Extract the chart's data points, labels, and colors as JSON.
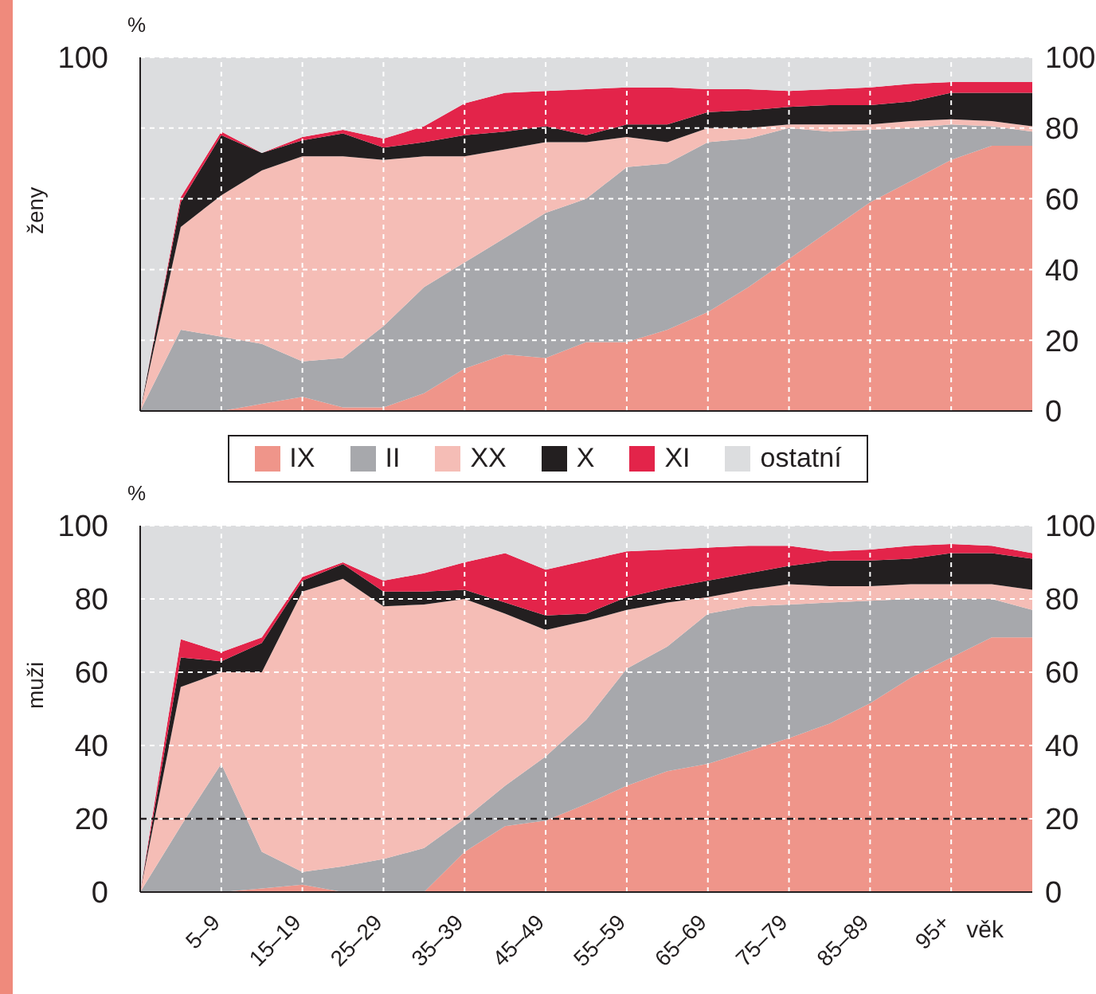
{
  "chart_data": [
    {
      "type": "area",
      "stacked": true,
      "ylabel": "ženy",
      "annotations": [
        "%"
      ],
      "categories": [
        null,
        null,
        null,
        null,
        null,
        null,
        null,
        null,
        null,
        null,
        null,
        null,
        null,
        null,
        null,
        null,
        null,
        null,
        null,
        null,
        null,
        null,
        null
      ],
      "ylim": [
        0,
        100
      ],
      "yticks": [
        {
          "value": 0,
          "label": null
        },
        {
          "value": 20,
          "label": null
        },
        {
          "value": 40,
          "label": null
        },
        {
          "value": 60,
          "label": null
        },
        {
          "value": 80,
          "label": null
        },
        100
      ],
      "y2lim": [
        0,
        100
      ],
      "y2ticks": [
        0,
        20,
        40,
        60,
        80,
        100
      ],
      "grid": true,
      "tick_labels": "y",
      "series": [
        {
          "color": "#ef958a",
          "values": [
            0,
            0,
            0,
            2,
            4,
            1,
            1,
            5,
            12,
            16,
            15,
            19.5,
            19.5,
            23,
            28,
            35,
            43,
            51,
            59,
            65,
            71,
            75,
            75
          ]
        },
        {
          "color": "#a7a8ac",
          "values": [
            0,
            23,
            21,
            17,
            10,
            14,
            23,
            30,
            30,
            33,
            41,
            40.5,
            49.5,
            47,
            48,
            42,
            37,
            28,
            20.5,
            15,
            10,
            5.5,
            4
          ]
        },
        {
          "color": "#f5bdb6",
          "values": [
            0,
            29,
            40,
            49,
            58,
            57,
            47,
            37,
            30,
            25,
            20,
            16,
            8.5,
            6,
            4,
            3,
            1,
            2,
            1.5,
            2,
            1.5,
            1.5,
            1.5
          ]
        },
        {
          "color": "#231f20",
          "values": [
            0,
            7,
            17,
            5,
            4.5,
            6.5,
            3.5,
            4,
            6,
            5,
            4.5,
            2,
            3.5,
            5,
            4.5,
            5,
            5,
            5.5,
            5.5,
            5.5,
            7.5,
            8,
            9.5
          ]
        },
        {
          "color": "#e3244a",
          "values": [
            0,
            1.5,
            1,
            0,
            1,
            1,
            2.5,
            4.5,
            9,
            11,
            10,
            13,
            10.5,
            10.5,
            6.5,
            6,
            4.5,
            4.5,
            5,
            5,
            3,
            3,
            3
          ]
        },
        {
          "color": "#dcdddf",
          "values": [
            100,
            39.5,
            21,
            27,
            22.5,
            20.5,
            23,
            19.5,
            13,
            10,
            9.5,
            9,
            8.5,
            8.5,
            9,
            9,
            9.5,
            9,
            8.5,
            7.5,
            7,
            7,
            7
          ]
        }
      ]
    },
    {
      "type": "area",
      "stacked": true,
      "ylabel": "muži",
      "xlabel": "věk",
      "annotations": [
        "%"
      ],
      "legend": "top",
      "categories": [
        null,
        null,
        "5–9",
        null,
        "15–19",
        null,
        "25–29",
        null,
        "35–39",
        null,
        "45–49",
        null,
        "55–59",
        null,
        "65–69",
        null,
        "75–79",
        null,
        "85–89",
        null,
        "95+",
        null,
        null
      ],
      "ylim": [
        0,
        100
      ],
      "yticks": [
        0,
        20,
        40,
        60,
        80,
        100
      ],
      "y2lim": [
        0,
        100
      ],
      "y2ticks": [
        0,
        20,
        40,
        60,
        80,
        100
      ],
      "grid": true,
      "ref_lines": [
        {
          "axis": "y",
          "value": 20,
          "color": "#231f20",
          "line_style": "dashed"
        }
      ],
      "series": [
        {
          "name": "IX",
          "color": "#ef958a",
          "values": [
            0,
            0,
            0,
            1,
            2,
            0,
            0,
            0,
            11,
            18,
            19.5,
            24,
            29,
            33,
            35,
            38.5,
            42,
            46,
            51.5,
            58.5,
            64,
            69.5,
            69.5
          ]
        },
        {
          "name": "II",
          "color": "#a7a8ac",
          "values": [
            0,
            18,
            35,
            10,
            3.5,
            7,
            9,
            12,
            9,
            11,
            17.5,
            23,
            32,
            34,
            41,
            39.5,
            36.5,
            33,
            28,
            21.5,
            16,
            10.5,
            7.5
          ]
        },
        {
          "name": "XX",
          "color": "#f5bdb6",
          "values": [
            0,
            38,
            25,
            49,
            76.5,
            78.5,
            69,
            66.5,
            60,
            47,
            34.5,
            27,
            16,
            12,
            4.5,
            4.5,
            5.5,
            4.5,
            4,
            4,
            4,
            4,
            5.5
          ]
        },
        {
          "name": "X",
          "color": "#231f20",
          "values": [
            0,
            8,
            3,
            8,
            3,
            4,
            4,
            3.5,
            2.5,
            3,
            4,
            2,
            3.5,
            4,
            4.5,
            4.5,
            5,
            7,
            7,
            7,
            8.5,
            8.5,
            8.5
          ]
        },
        {
          "name": "XI",
          "color": "#e3244a",
          "values": [
            0,
            5,
            2.5,
            1.5,
            1,
            0.5,
            3,
            5,
            7.5,
            13.5,
            12.5,
            14.5,
            12.5,
            10.5,
            9,
            7.5,
            5.5,
            2.5,
            3,
            3.5,
            2.5,
            2,
            1.5
          ]
        },
        {
          "name": "ostatní",
          "color": "#dcdddf",
          "values": [
            100,
            31,
            34.5,
            30.5,
            14,
            10,
            15,
            13,
            10,
            7.5,
            12,
            9.5,
            7,
            6.5,
            6,
            5.5,
            5.5,
            7,
            6.5,
            5.5,
            5,
            5.5,
            7.5
          ]
        }
      ]
    }
  ]
}
